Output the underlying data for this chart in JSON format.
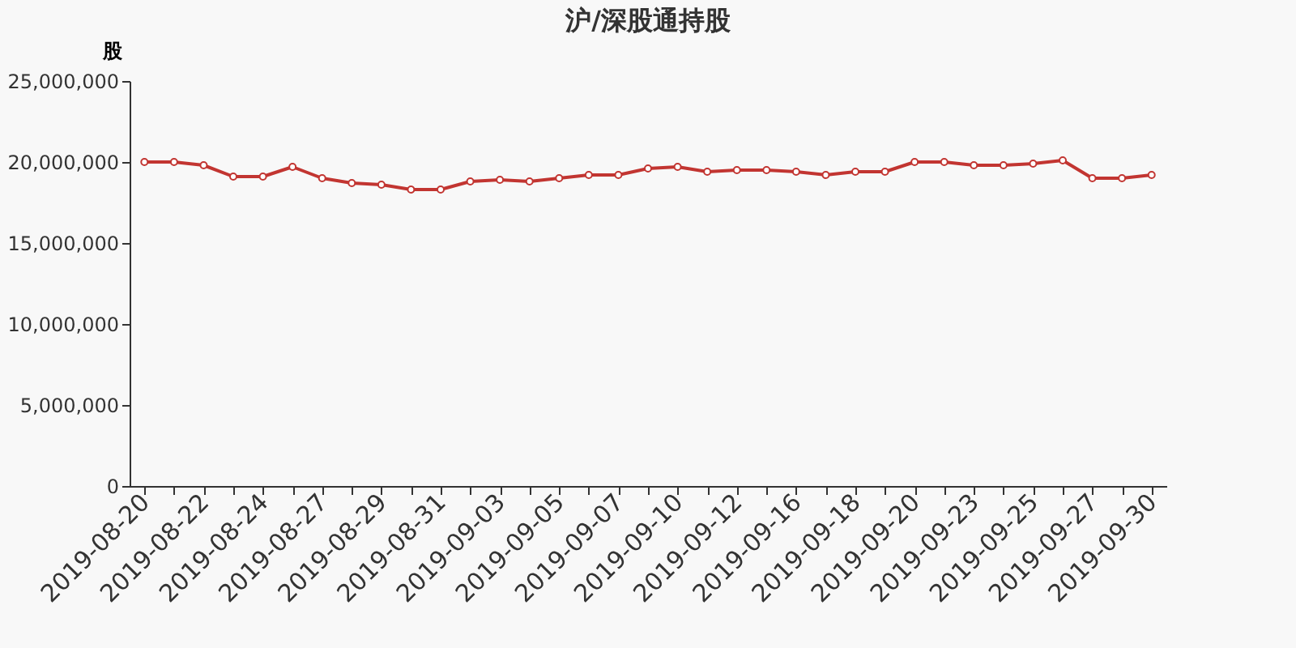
{
  "chart_data": {
    "type": "line",
    "title": "沪/深股通持股",
    "ylabel": "股",
    "categories": [
      "2019-08-20",
      null,
      "2019-08-22",
      null,
      "2019-08-24",
      null,
      "2019-08-27",
      null,
      "2019-08-29",
      null,
      "2019-08-31",
      null,
      "2019-09-03",
      null,
      "2019-09-05",
      null,
      "2019-09-07",
      null,
      "2019-09-10",
      null,
      "2019-09-12",
      null,
      "2019-09-16",
      null,
      "2019-09-18",
      null,
      "2019-09-20",
      null,
      "2019-09-23",
      null,
      "2019-09-25",
      null,
      "2019-09-27",
      null,
      "2019-09-30"
    ],
    "series": [
      {
        "color": "#c23531",
        "values": [
          20000000,
          20000000,
          19800000,
          19100000,
          19100000,
          19700000,
          19000000,
          18700000,
          18600000,
          18300000,
          18300000,
          18800000,
          18900000,
          18800000,
          19000000,
          19200000,
          19200000,
          19600000,
          19700000,
          19400000,
          19500000,
          19500000,
          19400000,
          19200000,
          19400000,
          19400000,
          20000000,
          20000000,
          19800000,
          19800000,
          19900000,
          20100000,
          19000000,
          19000000,
          19200000
        ]
      }
    ],
    "ylim": [
      0,
      25000000
    ],
    "yticks": [
      0,
      {
        "value": 5000000,
        "label": "5,000,000"
      },
      {
        "value": 10000000,
        "label": "10,000,000"
      },
      {
        "value": 15000000,
        "label": "15,000,000"
      },
      {
        "value": 20000000,
        "label": "20,000,000"
      },
      {
        "value": 25000000,
        "label": "25,000,000"
      }
    ],
    "grid": false,
    "marker": "circle",
    "line_style": "solid"
  }
}
